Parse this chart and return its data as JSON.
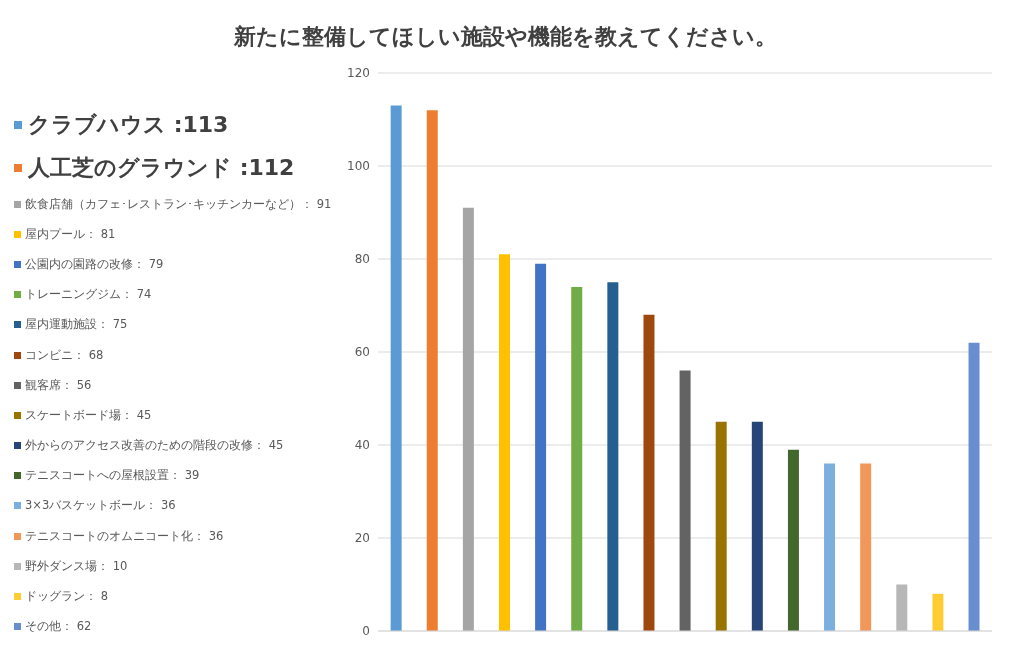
{
  "chart_data": {
    "type": "bar",
    "title": "新たに整備してほしい施設や機能を教えてください。",
    "categories": [
      null,
      null,
      null,
      null,
      null,
      null,
      null,
      null,
      null,
      null,
      null,
      null,
      null,
      null,
      null,
      null,
      null
    ],
    "stacked": true,
    "series": [
      {
        "name": "クラブハウス :113",
        "color": "#5b9bd5",
        "values": [
          113,
          null,
          null,
          null,
          null,
          null,
          null,
          null,
          null,
          null,
          null,
          null,
          null,
          null,
          null,
          null,
          null
        ]
      },
      {
        "name": "人工芝のグラウンド :112",
        "color": "#ed7d31",
        "values": [
          null,
          112,
          null,
          null,
          null,
          null,
          null,
          null,
          null,
          null,
          null,
          null,
          null,
          null,
          null,
          null,
          null
        ]
      },
      {
        "name": "飲食店舗（カフェ･レストラン･キッチンカーなど）： 91",
        "color": "#a5a5a5",
        "values": [
          null,
          null,
          91,
          null,
          null,
          null,
          null,
          null,
          null,
          null,
          null,
          null,
          null,
          null,
          null,
          null,
          null
        ]
      },
      {
        "name": "屋内プール： 81",
        "color": "#ffc000",
        "values": [
          null,
          null,
          null,
          81,
          null,
          null,
          null,
          null,
          null,
          null,
          null,
          null,
          null,
          null,
          null,
          null,
          null
        ]
      },
      {
        "name": "公園内の園路の改修： 79",
        "color": "#4472c4",
        "values": [
          null,
          null,
          null,
          null,
          79,
          null,
          null,
          null,
          null,
          null,
          null,
          null,
          null,
          null,
          null,
          null,
          null
        ]
      },
      {
        "name": "トレーニングジム： 74",
        "color": "#70ad47",
        "values": [
          null,
          null,
          null,
          null,
          null,
          74,
          null,
          null,
          null,
          null,
          null,
          null,
          null,
          null,
          null,
          null,
          null
        ]
      },
      {
        "name": "屋内運動施設： 75",
        "color": "#255e91",
        "values": [
          null,
          null,
          null,
          null,
          null,
          null,
          75,
          null,
          null,
          null,
          null,
          null,
          null,
          null,
          null,
          null,
          null
        ]
      },
      {
        "name": "コンビニ： 68",
        "color": "#9e480e",
        "values": [
          null,
          null,
          null,
          null,
          null,
          null,
          null,
          68,
          null,
          null,
          null,
          null,
          null,
          null,
          null,
          null,
          null
        ]
      },
      {
        "name": "観客席： 56",
        "color": "#636363",
        "values": [
          null,
          null,
          null,
          null,
          null,
          null,
          null,
          null,
          56,
          null,
          null,
          null,
          null,
          null,
          null,
          null,
          null
        ]
      },
      {
        "name": "スケートボード場： 45",
        "color": "#997300",
        "values": [
          null,
          null,
          null,
          null,
          null,
          null,
          null,
          null,
          null,
          45,
          null,
          null,
          null,
          null,
          null,
          null,
          null
        ]
      },
      {
        "name": "外からのアクセス改善のための階段の改修： 45",
        "color": "#264478",
        "values": [
          null,
          null,
          null,
          null,
          null,
          null,
          null,
          null,
          null,
          null,
          45,
          null,
          null,
          null,
          null,
          null,
          null
        ]
      },
      {
        "name": "テニスコートへの屋根設置： 39",
        "color": "#43682b",
        "values": [
          null,
          null,
          null,
          null,
          null,
          null,
          null,
          null,
          null,
          null,
          null,
          39,
          null,
          null,
          null,
          null,
          null
        ]
      },
      {
        "name": "3×3バスケットボール： 36",
        "color": "#7cafdd",
        "values": [
          null,
          null,
          null,
          null,
          null,
          null,
          null,
          null,
          null,
          null,
          null,
          null,
          36,
          null,
          null,
          null,
          null
        ]
      },
      {
        "name": "テニスコートのオムニコート化： 36",
        "color": "#f1975a",
        "values": [
          null,
          null,
          null,
          null,
          null,
          null,
          null,
          null,
          null,
          null,
          null,
          null,
          null,
          36,
          null,
          null,
          null
        ]
      },
      {
        "name": "野外ダンス場： 10",
        "color": "#b7b7b7",
        "values": [
          null,
          null,
          null,
          null,
          null,
          null,
          null,
          null,
          null,
          null,
          null,
          null,
          null,
          null,
          10,
          null,
          null
        ]
      },
      {
        "name": "ドッグラン： 8",
        "color": "#ffcd33",
        "values": [
          null,
          null,
          null,
          null,
          null,
          null,
          null,
          null,
          null,
          null,
          null,
          null,
          null,
          null,
          null,
          8,
          null
        ]
      },
      {
        "name": "その他： 62",
        "color": "#698ed0",
        "values": [
          null,
          null,
          null,
          null,
          null,
          null,
          null,
          null,
          null,
          null,
          null,
          null,
          null,
          null,
          null,
          null,
          62
        ]
      }
    ],
    "ylim": [
      0,
      120
    ],
    "yticks": [
      0,
      20,
      40,
      60,
      80,
      100,
      120
    ],
    "grid": "y",
    "legend": "left",
    "tick_labels": "y"
  }
}
